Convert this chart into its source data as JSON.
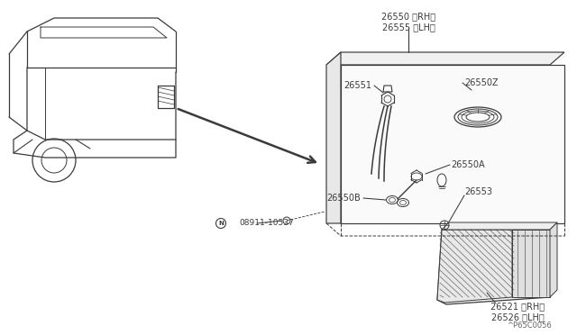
{
  "bg_color": "#ffffff",
  "line_color": "#3a3a3a",
  "labels": {
    "top_part": "26550 〈RH〉\n26555 〈LH〉",
    "l26551": "26551",
    "l26550z": "26550Z",
    "l26550a": "26550A",
    "l26553": "26553",
    "l26550b": "26550B",
    "bottom_part": "26521 〈RH〉\n26526 〈LH〉",
    "nut": "08911-10537",
    "watermark": "^P65C0056"
  }
}
